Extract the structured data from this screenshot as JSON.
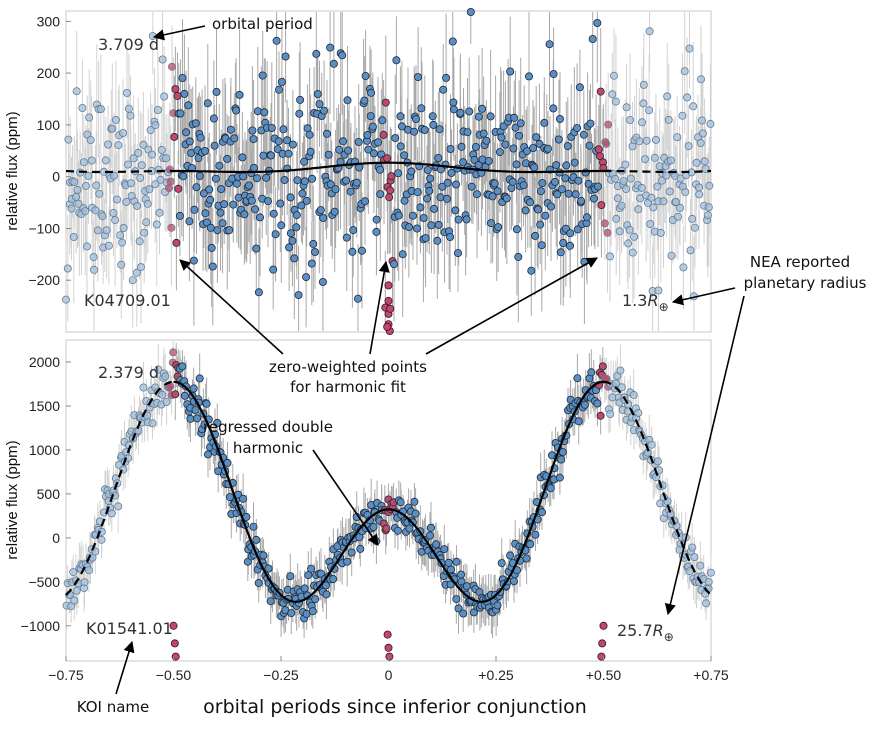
{
  "chart_data": [
    {
      "type": "scatter",
      "koi": "K04709.01",
      "period_label": "3.709 d",
      "radius_label": {
        "value": "1.3",
        "symbol": "R",
        "sub": "⊕"
      },
      "ylabel": "relative flux (ppm)",
      "xlim": [
        -0.75,
        0.75
      ],
      "ylim": [
        -300,
        320
      ],
      "yticks": [
        -200,
        -100,
        0,
        100,
        200,
        300
      ],
      "ytick_labels": [
        "−200",
        "−100",
        "0",
        "100",
        "200",
        "300"
      ],
      "noise_ppm": 90,
      "series": [
        {
          "name": "data points (weighted)",
          "color": "#5b8fc3"
        },
        {
          "name": "data points (extrapolated, faded)",
          "color": "#9fbfdf"
        },
        {
          "name": "zero-weighted points",
          "color": "#c2476b"
        },
        {
          "name": "harmonic fit",
          "color": "#000000"
        }
      ],
      "model": {
        "mean": 15,
        "cos1": 8,
        "cos2": 4
      },
      "transit_dip": [
        {
          "x": 0.0,
          "y": -210
        },
        {
          "x": 0.0,
          "y": -240
        },
        {
          "x": 0.0,
          "y": -265
        },
        {
          "x": 0.0,
          "y": -285
        },
        {
          "x": 0.003,
          "y": -300
        },
        {
          "x": -0.003,
          "y": -290
        },
        {
          "x": 0.004,
          "y": -255
        }
      ]
    },
    {
      "type": "scatter",
      "koi": "K01541.01",
      "period_label": "2.379 d",
      "radius_label": {
        "value": "25.7",
        "symbol": "R",
        "sub": "⊕"
      },
      "ylabel": "relative flux (ppm)",
      "xlabel": "orbital periods since inferior conjunction",
      "xlim": [
        -0.75,
        0.75
      ],
      "ylim": [
        -1400,
        2250
      ],
      "yticks": [
        -1000,
        -500,
        0,
        500,
        1000,
        1500,
        2000
      ],
      "ytick_labels": [
        "−1000",
        "−500",
        "0",
        "500",
        "1000",
        "1500",
        "2000"
      ],
      "xticks": [
        -0.75,
        -0.5,
        -0.25,
        0,
        0.25,
        0.5,
        0.75
      ],
      "xtick_labels": [
        "−0.75",
        "−0.50",
        "−0.25",
        "0",
        "+0.25",
        "+0.50",
        "+0.75"
      ],
      "noise_ppm": 130,
      "series": [
        {
          "name": "data points (weighted)",
          "color": "#5b8fc3"
        },
        {
          "name": "data points (extrapolated, faded)",
          "color": "#9fbfdf"
        },
        {
          "name": "zero-weighted points",
          "color": "#c2476b"
        },
        {
          "name": "regressed double harmonic",
          "color": "#000000"
        }
      ],
      "model": {
        "mean": 200,
        "cos1": -725,
        "cos2": 850
      },
      "eclipse_dip": [
        {
          "x": -0.002,
          "y": -1100
        },
        {
          "x": 0.0,
          "y": -1250
        },
        {
          "x": 0.002,
          "y": -1350
        },
        {
          "x": -0.5,
          "y": -1000
        },
        {
          "x": -0.497,
          "y": -1200
        },
        {
          "x": -0.495,
          "y": -1350
        },
        {
          "x": 0.5,
          "y": -1000
        },
        {
          "x": 0.497,
          "y": -1200
        },
        {
          "x": 0.495,
          "y": -1350
        }
      ]
    }
  ],
  "annotations": {
    "orbital_period": "orbital period",
    "zero_weighted_line1": "zero-weighted points",
    "zero_weighted_line2": "for harmonic fit",
    "regressed_line1": "regressed double",
    "regressed_line2": "harmonic",
    "nea_line1": "NEA reported",
    "nea_line2": "planetary radius",
    "koi_name": "KOI name"
  }
}
